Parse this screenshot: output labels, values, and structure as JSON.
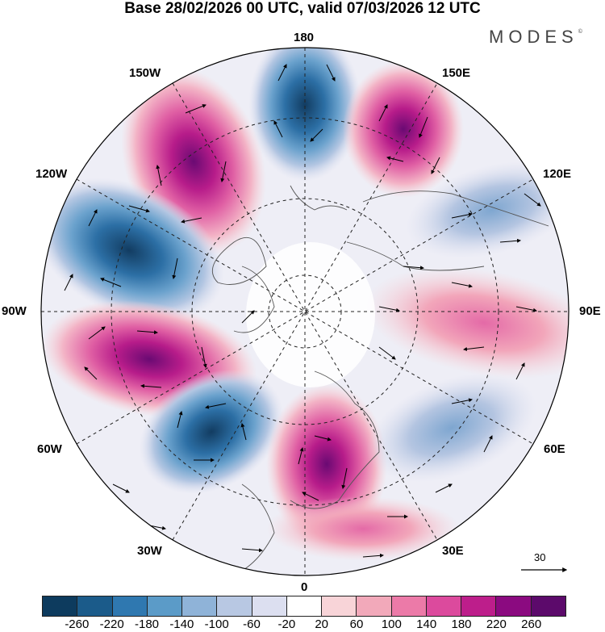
{
  "header": {
    "title": "Base 28/02/2026 00 UTC, valid 07/03/2026 12 UTC",
    "logo_text": "MODES",
    "logo_mark": "©"
  },
  "map": {
    "projection": "north-polar-stereographic",
    "longitude_labels": {
      "top": "180",
      "bottom": "0",
      "left": "90W",
      "right": "90E",
      "upper_left_1": "150W",
      "upper_left_2": "120W",
      "lower_left_1": "60W",
      "lower_left_2": "30W",
      "upper_right_1": "150E",
      "upper_right_2": "120E",
      "lower_right_1": "60E",
      "lower_right_2": "30E"
    },
    "anomaly_centers": [
      {
        "name": "north-pacific-low",
        "lon": "180",
        "sign": "negative"
      },
      {
        "name": "bering-high",
        "lon": "150E",
        "sign": "positive"
      },
      {
        "name": "alaska-high",
        "lon": "150W",
        "sign": "positive"
      },
      {
        "name": "canada-low",
        "lon": "120W",
        "sign": "negative"
      },
      {
        "name": "atlantic-high",
        "lon": "80W",
        "sign": "positive"
      },
      {
        "name": "atlantic-low",
        "lon": "50W",
        "sign": "negative"
      },
      {
        "name": "europe-high",
        "lon": "15E",
        "sign": "positive"
      }
    ]
  },
  "reference_vector": {
    "label": "30"
  },
  "colorbar": {
    "ticks": [
      "-260",
      "-220",
      "-180",
      "-140",
      "-100",
      "-60",
      "-20",
      "20",
      "60",
      "100",
      "140",
      "180",
      "220",
      "260"
    ],
    "colors": [
      "#0d3b5e",
      "#1b5b8a",
      "#2f78b0",
      "#5b9bc8",
      "#8fb3d8",
      "#b8c8e3",
      "#dcdff0",
      "#ffffff",
      "#f8d4d8",
      "#f2a9ba",
      "#ec7aa8",
      "#dc4a9d",
      "#bd1e8b",
      "#8b0a80",
      "#5c0a6b"
    ]
  }
}
